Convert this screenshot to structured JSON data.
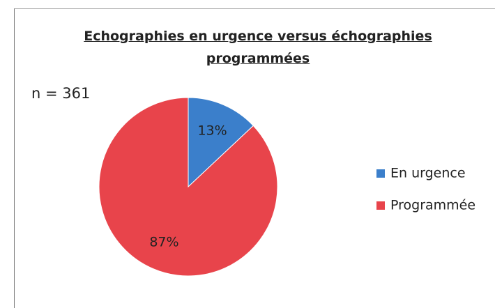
{
  "chart_data": {
    "type": "pie",
    "title": "Echographies en urgence versus échographies programmées",
    "annotation": "n = 361",
    "categories": [
      "En urgence",
      "Programmée"
    ],
    "values": [
      13,
      87
    ],
    "value_labels": [
      "13%",
      "87%"
    ],
    "colors": [
      "#3b7fcb",
      "#e8444b"
    ],
    "legend": "right"
  }
}
